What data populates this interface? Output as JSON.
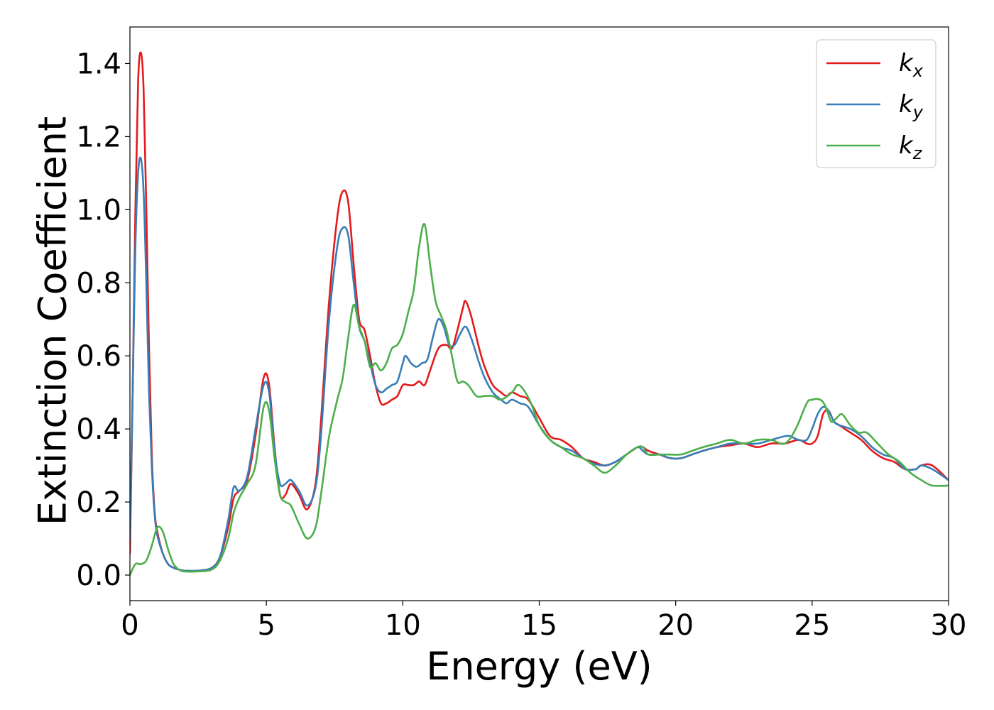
{
  "chart_data": {
    "type": "line",
    "title": "",
    "xlabel": "Energy (eV)",
    "ylabel": "Extinction Coefficient",
    "xlim": [
      0,
      30
    ],
    "ylim": [
      -0.07,
      1.5
    ],
    "xticks": [
      0,
      5,
      10,
      15,
      20,
      25,
      30
    ],
    "yticks": [
      0.0,
      0.2,
      0.4,
      0.6,
      0.8,
      1.0,
      1.2,
      1.4
    ],
    "ytick_labels": [
      "0.0",
      "0.2",
      "0.4",
      "0.6",
      "0.8",
      "1.0",
      "1.2",
      "1.4"
    ],
    "grid": false,
    "legend_position": "top-right",
    "series": [
      {
        "name": "k",
        "subscript": "x",
        "color": "#e41a1c",
        "x": [
          0,
          0.1,
          0.2,
          0.3,
          0.4,
          0.5,
          0.6,
          0.7,
          0.8,
          0.9,
          1.0,
          1.2,
          1.4,
          1.6,
          1.8,
          2.0,
          2.5,
          3.0,
          3.3,
          3.6,
          3.8,
          4.0,
          4.3,
          4.6,
          4.9,
          5.1,
          5.3,
          5.5,
          5.7,
          5.9,
          6.2,
          6.5,
          6.8,
          7.0,
          7.3,
          7.6,
          7.8,
          8.0,
          8.2,
          8.4,
          8.6,
          8.8,
          9.0,
          9.2,
          9.4,
          9.6,
          9.8,
          10.0,
          10.2,
          10.4,
          10.6,
          10.8,
          11.0,
          11.3,
          11.6,
          11.8,
          12.0,
          12.2,
          12.3,
          12.5,
          12.8,
          13.0,
          13.3,
          13.6,
          13.8,
          14.0,
          14.3,
          14.6,
          15.0,
          15.4,
          15.8,
          16.2,
          16.6,
          17.0,
          17.4,
          17.8,
          18.2,
          18.6,
          18.8,
          19.0,
          19.4,
          19.8,
          20.2,
          20.6,
          21.0,
          21.5,
          22.0,
          22.5,
          23.0,
          23.5,
          24.0,
          24.5,
          24.8,
          25.0,
          25.2,
          25.4,
          25.6,
          25.8,
          26.0,
          26.4,
          26.8,
          27.2,
          27.6,
          28.0,
          28.4,
          28.8,
          29.0,
          29.4,
          30.0
        ],
        "y": [
          0.06,
          0.5,
          1.0,
          1.35,
          1.43,
          1.33,
          1.0,
          0.62,
          0.33,
          0.18,
          0.12,
          0.06,
          0.03,
          0.02,
          0.015,
          0.012,
          0.012,
          0.02,
          0.05,
          0.13,
          0.21,
          0.23,
          0.26,
          0.38,
          0.54,
          0.52,
          0.35,
          0.22,
          0.22,
          0.25,
          0.22,
          0.18,
          0.25,
          0.42,
          0.75,
          0.98,
          1.05,
          1.02,
          0.85,
          0.7,
          0.67,
          0.6,
          0.52,
          0.47,
          0.47,
          0.48,
          0.49,
          0.52,
          0.52,
          0.52,
          0.53,
          0.52,
          0.56,
          0.62,
          0.63,
          0.62,
          0.67,
          0.73,
          0.75,
          0.71,
          0.62,
          0.57,
          0.52,
          0.5,
          0.49,
          0.5,
          0.49,
          0.48,
          0.43,
          0.38,
          0.37,
          0.35,
          0.32,
          0.31,
          0.3,
          0.31,
          0.33,
          0.35,
          0.35,
          0.34,
          0.33,
          0.32,
          0.32,
          0.33,
          0.34,
          0.35,
          0.355,
          0.36,
          0.35,
          0.36,
          0.36,
          0.37,
          0.36,
          0.36,
          0.38,
          0.44,
          0.45,
          0.42,
          0.41,
          0.39,
          0.37,
          0.34,
          0.32,
          0.31,
          0.29,
          0.29,
          0.3,
          0.3,
          0.26
        ]
      },
      {
        "name": "k",
        "subscript": "y",
        "color": "#377eb8",
        "x": [
          0,
          0.1,
          0.2,
          0.3,
          0.4,
          0.5,
          0.6,
          0.7,
          0.8,
          0.9,
          1.0,
          1.2,
          1.4,
          1.6,
          1.8,
          2.0,
          2.5,
          3.0,
          3.3,
          3.6,
          3.8,
          4.0,
          4.3,
          4.6,
          4.9,
          5.1,
          5.3,
          5.5,
          5.7,
          5.9,
          6.2,
          6.5,
          6.8,
          7.0,
          7.3,
          7.6,
          7.8,
          8.0,
          8.2,
          8.4,
          8.6,
          8.8,
          9.0,
          9.2,
          9.4,
          9.6,
          9.8,
          10.0,
          10.1,
          10.3,
          10.5,
          10.7,
          10.9,
          11.1,
          11.3,
          11.5,
          11.7,
          11.9,
          12.1,
          12.3,
          12.5,
          12.8,
          13.0,
          13.3,
          13.6,
          13.8,
          14.0,
          14.3,
          14.6,
          15.0,
          15.4,
          15.8,
          16.2,
          16.6,
          17.0,
          17.4,
          17.8,
          18.2,
          18.6,
          18.8,
          19.0,
          19.4,
          19.8,
          20.2,
          20.6,
          21.0,
          21.5,
          22.0,
          22.5,
          23.0,
          23.5,
          24.0,
          24.2,
          24.5,
          24.8,
          25.0,
          25.2,
          25.4,
          25.6,
          25.8,
          26.0,
          26.4,
          26.8,
          27.2,
          27.6,
          28.0,
          28.4,
          28.8,
          29.0,
          29.4,
          30.0
        ],
        "y": [
          0.1,
          0.5,
          0.9,
          1.1,
          1.14,
          1.05,
          0.8,
          0.5,
          0.3,
          0.17,
          0.11,
          0.06,
          0.03,
          0.02,
          0.015,
          0.012,
          0.012,
          0.02,
          0.05,
          0.15,
          0.24,
          0.23,
          0.27,
          0.4,
          0.52,
          0.5,
          0.34,
          0.25,
          0.25,
          0.26,
          0.23,
          0.19,
          0.24,
          0.38,
          0.7,
          0.9,
          0.95,
          0.93,
          0.8,
          0.68,
          0.64,
          0.58,
          0.52,
          0.5,
          0.51,
          0.52,
          0.53,
          0.58,
          0.6,
          0.58,
          0.57,
          0.58,
          0.59,
          0.65,
          0.7,
          0.68,
          0.63,
          0.63,
          0.66,
          0.68,
          0.65,
          0.58,
          0.54,
          0.5,
          0.48,
          0.47,
          0.48,
          0.47,
          0.46,
          0.41,
          0.37,
          0.35,
          0.34,
          0.32,
          0.305,
          0.3,
          0.31,
          0.33,
          0.35,
          0.34,
          0.33,
          0.33,
          0.32,
          0.32,
          0.33,
          0.34,
          0.35,
          0.36,
          0.36,
          0.36,
          0.37,
          0.38,
          0.38,
          0.37,
          0.37,
          0.4,
          0.44,
          0.46,
          0.45,
          0.42,
          0.41,
          0.4,
          0.38,
          0.35,
          0.33,
          0.32,
          0.29,
          0.29,
          0.3,
          0.29,
          0.26
        ]
      },
      {
        "name": "k",
        "subscript": "z",
        "color": "#4daf4a",
        "x": [
          0,
          0.2,
          0.4,
          0.6,
          0.8,
          1.0,
          1.2,
          1.4,
          1.6,
          1.8,
          2.0,
          2.5,
          3.0,
          3.3,
          3.6,
          3.8,
          4.0,
          4.3,
          4.6,
          4.9,
          5.1,
          5.3,
          5.5,
          5.7,
          5.9,
          6.2,
          6.5,
          6.8,
          7.0,
          7.3,
          7.6,
          7.8,
          8.0,
          8.2,
          8.4,
          8.6,
          8.8,
          9.0,
          9.2,
          9.4,
          9.6,
          9.8,
          10.0,
          10.2,
          10.4,
          10.6,
          10.8,
          11.0,
          11.2,
          11.4,
          11.6,
          11.8,
          12.0,
          12.2,
          12.4,
          12.7,
          13.0,
          13.3,
          13.6,
          14.0,
          14.2,
          14.4,
          14.7,
          15.0,
          15.4,
          15.8,
          16.2,
          16.6,
          17.0,
          17.4,
          17.8,
          18.2,
          18.6,
          18.8,
          19.0,
          19.4,
          19.8,
          20.2,
          20.6,
          21.0,
          21.5,
          22.0,
          22.5,
          23.0,
          23.5,
          24.0,
          24.4,
          24.8,
          25.0,
          25.3,
          25.5,
          25.7,
          25.9,
          26.1,
          26.4,
          26.7,
          27.0,
          27.4,
          27.8,
          28.2,
          28.6,
          29.0,
          29.4,
          30.0
        ],
        "y": [
          0.0,
          0.03,
          0.03,
          0.04,
          0.08,
          0.13,
          0.12,
          0.07,
          0.03,
          0.015,
          0.01,
          0.01,
          0.015,
          0.04,
          0.1,
          0.17,
          0.21,
          0.25,
          0.3,
          0.46,
          0.45,
          0.32,
          0.22,
          0.2,
          0.19,
          0.14,
          0.1,
          0.13,
          0.22,
          0.38,
          0.48,
          0.54,
          0.65,
          0.74,
          0.68,
          0.64,
          0.57,
          0.58,
          0.56,
          0.58,
          0.62,
          0.63,
          0.66,
          0.72,
          0.78,
          0.9,
          0.96,
          0.85,
          0.75,
          0.71,
          0.67,
          0.6,
          0.53,
          0.53,
          0.52,
          0.49,
          0.49,
          0.49,
          0.48,
          0.5,
          0.52,
          0.51,
          0.47,
          0.41,
          0.37,
          0.35,
          0.33,
          0.32,
          0.3,
          0.28,
          0.3,
          0.33,
          0.35,
          0.35,
          0.33,
          0.33,
          0.33,
          0.33,
          0.34,
          0.35,
          0.36,
          0.37,
          0.36,
          0.37,
          0.37,
          0.36,
          0.4,
          0.47,
          0.48,
          0.48,
          0.46,
          0.42,
          0.43,
          0.44,
          0.41,
          0.39,
          0.39,
          0.36,
          0.33,
          0.31,
          0.28,
          0.26,
          0.245,
          0.245
        ]
      }
    ]
  }
}
